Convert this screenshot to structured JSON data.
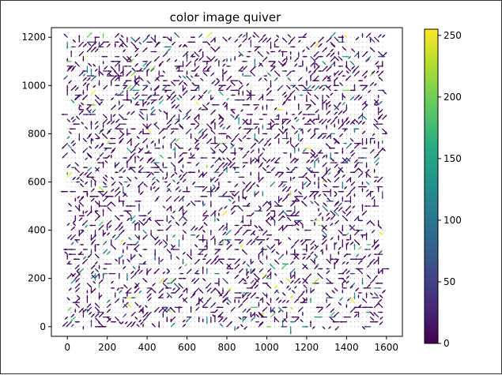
{
  "chart_data": {
    "type": "quiver",
    "title": "color image quiver",
    "xlabel": "",
    "ylabel": "",
    "xlim": [
      -80,
      1680
    ],
    "ylim": [
      -40,
      1240
    ],
    "x_ticks": [
      0,
      200,
      400,
      600,
      800,
      1000,
      1200,
      1400,
      1600
    ],
    "y_ticks": [
      0,
      200,
      400,
      600,
      800,
      1000,
      1200
    ],
    "grid_spacing": 20,
    "grid_x_range": [
      0,
      1580
    ],
    "grid_y_range": [
      0,
      1200
    ],
    "colorbar": {
      "colormap": "viridis",
      "range": [
        0,
        255
      ],
      "ticks": [
        0,
        50,
        100,
        150,
        200,
        250
      ]
    },
    "grid": false,
    "legend": "none"
  }
}
